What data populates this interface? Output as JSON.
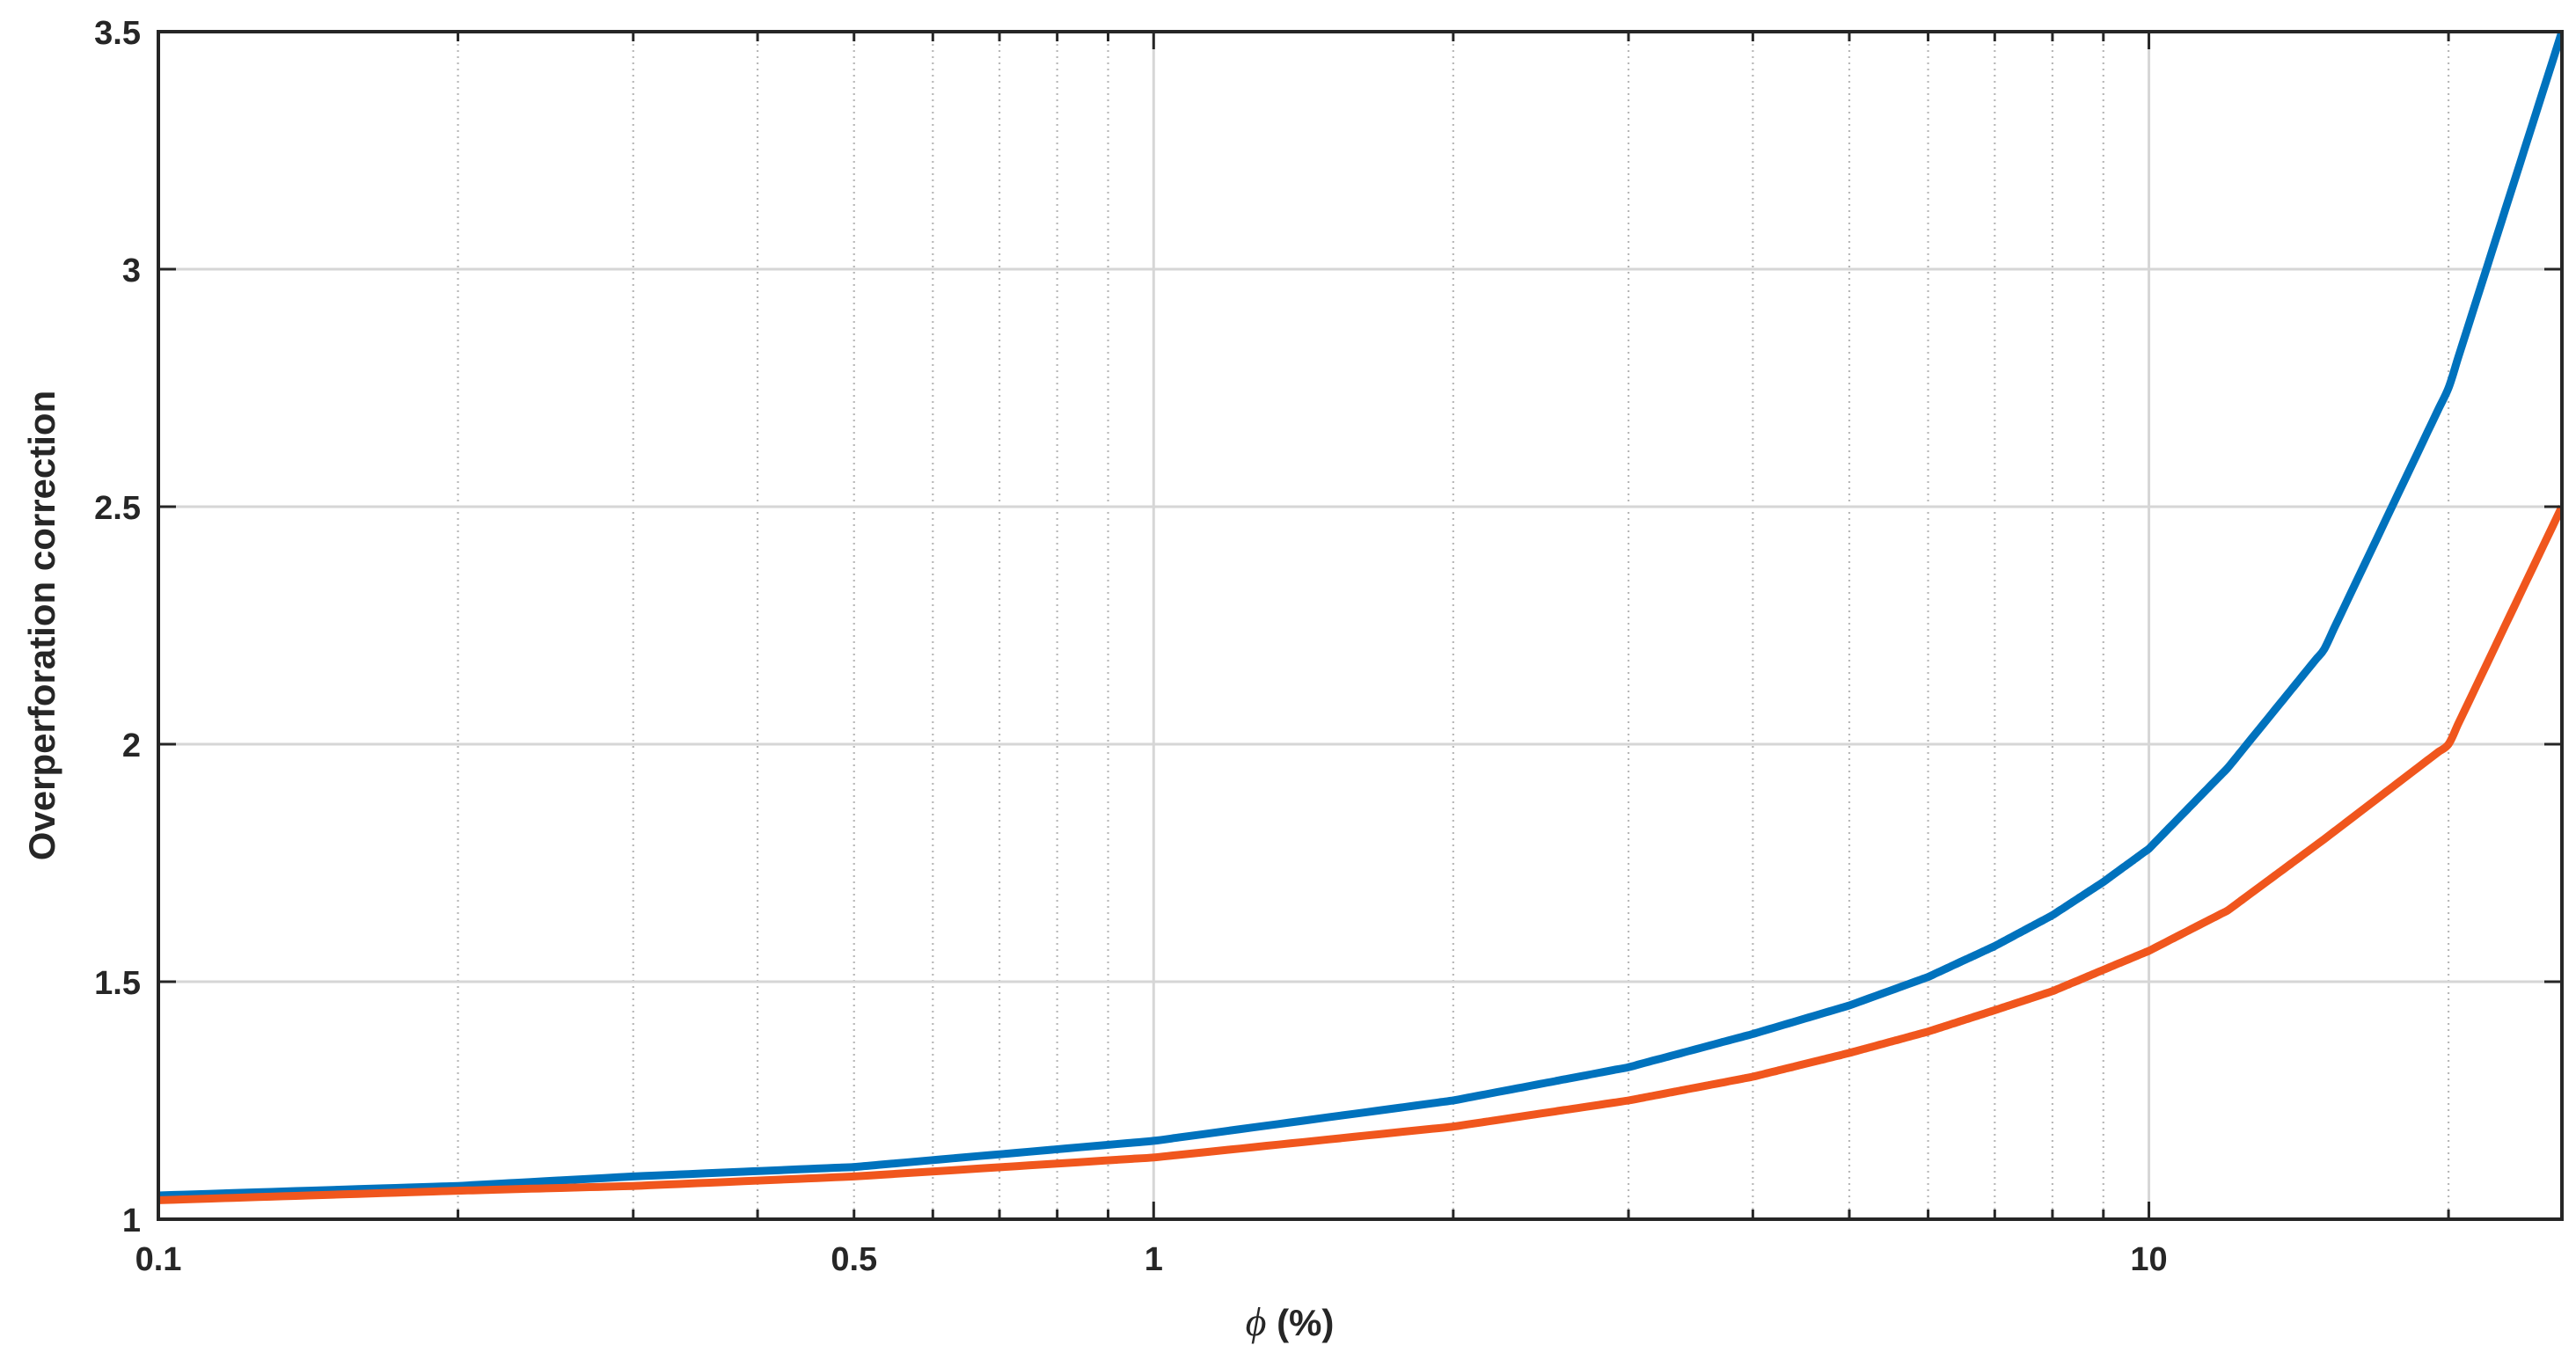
{
  "chart_data": {
    "type": "line",
    "xlabel": {
      "symbol": "ϕ",
      "unit": " (%)"
    },
    "ylabel": "Overperforation correction",
    "xscale": "log",
    "xlim": [
      0.1,
      26
    ],
    "ylim": [
      1,
      3.5
    ],
    "grid": true,
    "xtick_labels": [
      {
        "value": 0.1,
        "label": "0.1"
      },
      {
        "value": 0.5,
        "label": "0.5"
      },
      {
        "value": 1,
        "label": "1"
      },
      {
        "value": 10,
        "label": "10"
      }
    ],
    "xgrid_major": [
      1,
      10
    ],
    "xgrid_minor": [
      0.2,
      0.3,
      0.4,
      0.5,
      0.6,
      0.7,
      0.8,
      0.9,
      2,
      3,
      4,
      5,
      6,
      7,
      8,
      9,
      20
    ],
    "ytick_labels": [
      {
        "value": 1,
        "label": "1"
      },
      {
        "value": 1.5,
        "label": "1.5"
      },
      {
        "value": 2,
        "label": "2"
      },
      {
        "value": 2.5,
        "label": "2.5"
      },
      {
        "value": 3,
        "label": "3"
      },
      {
        "value": 3.5,
        "label": "3.5"
      }
    ],
    "series": [
      {
        "color": "#0072BD",
        "x": [
          0.1,
          0.2,
          0.3,
          0.5,
          1,
          2,
          3,
          4,
          5,
          6,
          7,
          8,
          9,
          10,
          12,
          15,
          20,
          26
        ],
        "y": [
          1.05,
          1.07,
          1.09,
          1.11,
          1.165,
          1.25,
          1.32,
          1.39,
          1.45,
          1.51,
          1.575,
          1.64,
          1.71,
          1.78,
          1.95,
          2.2,
          2.75,
          3.5
        ]
      },
      {
        "color": "#F0561D",
        "x": [
          0.1,
          0.2,
          0.3,
          0.5,
          1,
          2,
          3,
          4,
          5,
          6,
          7,
          8,
          9,
          10,
          12,
          15,
          20,
          26
        ],
        "y": [
          1.04,
          1.06,
          1.07,
          1.09,
          1.13,
          1.195,
          1.25,
          1.3,
          1.35,
          1.395,
          1.44,
          1.48,
          1.525,
          1.565,
          1.65,
          1.8,
          2.0,
          2.5
        ]
      }
    ]
  }
}
